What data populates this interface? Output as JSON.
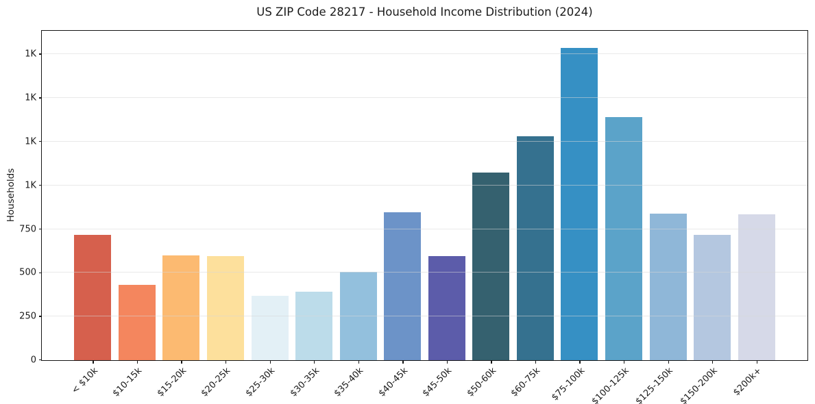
{
  "figure": {
    "background": "#ffffff",
    "frame_color": "#151515",
    "text_color": "#1a1a1a",
    "grid_color_over_white": "#e8e8e8"
  },
  "chart_data": {
    "type": "bar",
    "title": "US ZIP Code 28217 - Household Income Distribution (2024)",
    "xlabel": "",
    "ylabel": "Households",
    "legend": "none",
    "grid": "horizontal",
    "ylim": [
      0,
      1880
    ],
    "yticks": [
      {
        "value": 0,
        "label": "0"
      },
      {
        "value": 250,
        "label": "250"
      },
      {
        "value": 500,
        "label": "500"
      },
      {
        "value": 750,
        "label": "750"
      },
      {
        "value": 1000,
        "label": "1K"
      },
      {
        "value": 1250,
        "label": "1K"
      },
      {
        "value": 1500,
        "label": "1K"
      },
      {
        "value": 1750,
        "label": "1K"
      }
    ],
    "categories": [
      "< $10k",
      "$10-15k",
      "$15-20k",
      "$20-25k",
      "$25-30k",
      "$30-35k",
      "$35-40k",
      "$40-45k",
      "$45-50k",
      "$50-60k",
      "$60-75k",
      "$75-100k",
      "$100-125k",
      "$125-150k",
      "$150-200k",
      "$200k+"
    ],
    "values": [
      715,
      430,
      600,
      595,
      370,
      390,
      505,
      845,
      595,
      1075,
      1280,
      1785,
      1390,
      840,
      715,
      835
    ],
    "bar_colors": [
      "#d6604d",
      "#f4865e",
      "#fcba71",
      "#fde09c",
      "#e3f0f6",
      "#bcdcea",
      "#93c0dd",
      "#6c93c8",
      "#5c5caa",
      "#35616f",
      "#35718f",
      "#3690c4",
      "#5ba3c9",
      "#8fb7d8",
      "#b4c7e0",
      "#d6d9e8"
    ]
  }
}
